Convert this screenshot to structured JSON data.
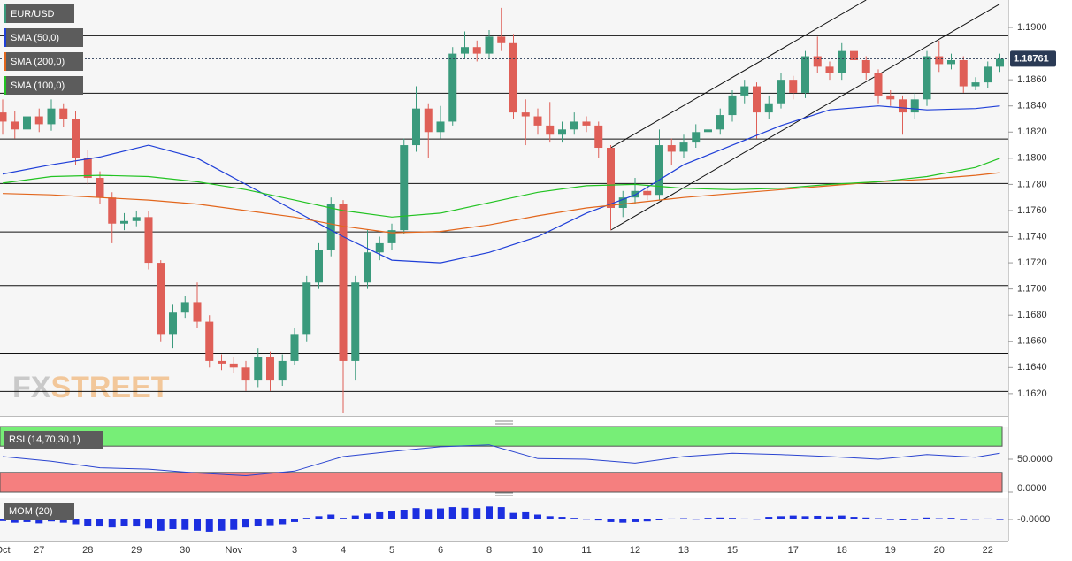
{
  "watermark": [
    "FX",
    "STREET"
  ],
  "chart_data": [
    {
      "type": "candlestick",
      "title": "EUR/USD",
      "up_color": "#3a9a7c",
      "down_color": "#df5f57",
      "categories": [
        "Oct",
        null,
        null,
        "27",
        null,
        null,
        null,
        "28",
        null,
        null,
        null,
        "29",
        null,
        null,
        null,
        "30",
        null,
        null,
        null,
        "Nov",
        null,
        null,
        null,
        null,
        "3",
        null,
        null,
        null,
        "4",
        null,
        null,
        null,
        "5",
        null,
        null,
        null,
        "6",
        null,
        null,
        null,
        "8",
        null,
        null,
        null,
        "10",
        null,
        null,
        null,
        "11",
        null,
        null,
        null,
        "12",
        null,
        null,
        null,
        "13",
        null,
        null,
        null,
        "15",
        null,
        null,
        null,
        null,
        "17",
        null,
        null,
        null,
        "18",
        null,
        null,
        null,
        "19",
        null,
        null,
        null,
        "20",
        null,
        null,
        null,
        "22",
        null
      ],
      "open": [
        1.1835,
        1.1828,
        1.1822,
        1.1832,
        1.1826,
        1.1838,
        1.183,
        1.18,
        1.1785,
        1.177,
        1.175,
        1.1752,
        1.1755,
        1.172,
        1.1665,
        1.1682,
        1.169,
        1.1675,
        1.1645,
        1.1643,
        1.164,
        1.163,
        1.1648,
        1.163,
        1.1645,
        1.1665,
        1.1705,
        1.173,
        1.1765,
        1.1645,
        1.1705,
        1.1728,
        1.1735,
        1.1745,
        1.181,
        1.1838,
        1.182,
        1.1828,
        1.188,
        1.1885,
        1.188,
        1.1893,
        1.1888,
        1.1835,
        1.1832,
        1.1825,
        1.1818,
        1.1822,
        1.1828,
        1.1825,
        1.1808,
        1.1762,
        1.177,
        1.1775,
        1.1772,
        1.181,
        1.1805,
        1.1812,
        1.182,
        1.1822,
        1.1833,
        1.1848,
        1.1855,
        1.1835,
        1.1842,
        1.186,
        1.185,
        1.1878,
        1.187,
        1.1865,
        1.1882,
        1.1875,
        1.1865,
        1.1848,
        1.1845,
        1.1835,
        1.1845,
        1.1878,
        1.1872,
        1.1875,
        1.1855,
        1.1858,
        1.187
      ],
      "high": [
        1.1845,
        1.1836,
        1.184,
        1.1838,
        1.1845,
        1.1842,
        1.1836,
        1.1806,
        1.179,
        1.1774,
        1.1758,
        1.176,
        1.176,
        1.1722,
        1.1688,
        1.1695,
        1.1705,
        1.168,
        1.165,
        1.1648,
        1.1645,
        1.1655,
        1.1652,
        1.165,
        1.167,
        1.171,
        1.1735,
        1.177,
        1.1768,
        1.171,
        1.1745,
        1.174,
        1.175,
        1.1815,
        1.1855,
        1.1842,
        1.184,
        1.1885,
        1.1897,
        1.189,
        1.1898,
        1.1915,
        1.1895,
        1.1845,
        1.1838,
        1.1843,
        1.1828,
        1.1835,
        1.1832,
        1.1828,
        1.181,
        1.1775,
        1.1785,
        1.178,
        1.1822,
        1.1815,
        1.1818,
        1.1826,
        1.1828,
        1.1838,
        1.1852,
        1.186,
        1.1858,
        1.1848,
        1.1865,
        1.1863,
        1.1882,
        1.1893,
        1.1874,
        1.1888,
        1.189,
        1.1878,
        1.1868,
        1.1852,
        1.1848,
        1.185,
        1.1882,
        1.189,
        1.188,
        1.1878,
        1.1862,
        1.1874,
        1.188
      ],
      "low": [
        1.1818,
        1.1815,
        1.1816,
        1.182,
        1.1821,
        1.1824,
        1.1795,
        1.178,
        1.1765,
        1.1735,
        1.1745,
        1.1748,
        1.1715,
        1.166,
        1.1655,
        1.1678,
        1.167,
        1.164,
        1.1638,
        1.1636,
        1.1622,
        1.1625,
        1.1622,
        1.1626,
        1.1642,
        1.166,
        1.17,
        1.1725,
        1.1605,
        1.163,
        1.17,
        1.1722,
        1.173,
        1.1742,
        1.1805,
        1.18,
        1.1815,
        1.1825,
        1.1876,
        1.1874,
        1.1876,
        1.1882,
        1.183,
        1.181,
        1.1818,
        1.1812,
        1.1812,
        1.1818,
        1.182,
        1.18,
        1.1745,
        1.1755,
        1.1765,
        1.1768,
        1.1768,
        1.1795,
        1.18,
        1.1808,
        1.1815,
        1.1818,
        1.1828,
        1.1842,
        1.1815,
        1.183,
        1.1838,
        1.1845,
        1.1846,
        1.1865,
        1.186,
        1.186,
        1.187,
        1.186,
        1.1842,
        1.184,
        1.1818,
        1.183,
        1.184,
        1.1866,
        1.1868,
        1.185,
        1.1852,
        1.1854,
        1.1866
      ],
      "close": [
        1.1828,
        1.1822,
        1.1832,
        1.1826,
        1.1838,
        1.183,
        1.18,
        1.1785,
        1.177,
        1.175,
        1.1752,
        1.1755,
        1.172,
        1.1665,
        1.1682,
        1.169,
        1.1675,
        1.1645,
        1.1643,
        1.164,
        1.163,
        1.1648,
        1.163,
        1.1645,
        1.1665,
        1.1705,
        1.173,
        1.1765,
        1.1645,
        1.1705,
        1.1728,
        1.1735,
        1.1745,
        1.181,
        1.1838,
        1.182,
        1.1828,
        1.188,
        1.1885,
        1.188,
        1.1893,
        1.1888,
        1.1835,
        1.1832,
        1.1825,
        1.1818,
        1.1822,
        1.1828,
        1.1825,
        1.1808,
        1.1762,
        1.177,
        1.1775,
        1.1772,
        1.181,
        1.1805,
        1.1812,
        1.182,
        1.1822,
        1.1833,
        1.1848,
        1.1855,
        1.1835,
        1.1842,
        1.186,
        1.185,
        1.1878,
        1.187,
        1.1865,
        1.1882,
        1.1875,
        1.1865,
        1.1848,
        1.1845,
        1.1835,
        1.1845,
        1.1878,
        1.1872,
        1.1875,
        1.1855,
        1.1858,
        1.187,
        1.1876
      ],
      "series": [
        {
          "name": "SMA (50,0)",
          "color": "#1f3fd8",
          "x": [
            0,
            4,
            8,
            12,
            16,
            20,
            24,
            28,
            32,
            36,
            40,
            44,
            48,
            52,
            56,
            60,
            64,
            68,
            72,
            76,
            80,
            82
          ],
          "values": [
            1.1788,
            1.1795,
            1.1801,
            1.181,
            1.18,
            1.178,
            1.176,
            1.174,
            1.1722,
            1.172,
            1.1728,
            1.174,
            1.1758,
            1.1772,
            1.1795,
            1.181,
            1.1825,
            1.1837,
            1.184,
            1.1837,
            1.1838,
            1.184
          ]
        },
        {
          "name": "SMA (200,0)",
          "color": "#e2661c",
          "x": [
            0,
            4,
            8,
            12,
            16,
            20,
            24,
            28,
            32,
            36,
            40,
            44,
            48,
            52,
            56,
            60,
            64,
            68,
            72,
            76,
            80,
            82
          ],
          "values": [
            1.1773,
            1.1772,
            1.177,
            1.1768,
            1.1765,
            1.176,
            1.1755,
            1.1748,
            1.1743,
            1.1744,
            1.1749,
            1.1756,
            1.1762,
            1.1766,
            1.177,
            1.1773,
            1.1776,
            1.1779,
            1.1782,
            1.1784,
            1.1787,
            1.1789
          ]
        },
        {
          "name": "SMA (100,0)",
          "color": "#22c322",
          "x": [
            0,
            4,
            8,
            12,
            16,
            20,
            24,
            28,
            32,
            36,
            40,
            44,
            48,
            52,
            56,
            60,
            64,
            68,
            72,
            76,
            80,
            82
          ],
          "values": [
            1.1781,
            1.1786,
            1.1787,
            1.1786,
            1.1782,
            1.1776,
            1.1768,
            1.176,
            1.1755,
            1.1758,
            1.1766,
            1.1774,
            1.1779,
            1.178,
            1.1777,
            1.1776,
            1.1777,
            1.178,
            1.1782,
            1.1786,
            1.1793,
            1.18
          ]
        }
      ],
      "levels": [
        1.1894,
        1.185,
        1.1815,
        1.1781,
        1.1744,
        1.1703,
        1.1651,
        1.1622
      ],
      "channel": [
        {
          "x": [
            50,
            71
          ],
          "values": [
            1.1808,
            1.1921
          ]
        },
        {
          "x": [
            50,
            82
          ],
          "values": [
            1.1745,
            1.1918
          ]
        }
      ],
      "last_price": 1.18761,
      "ylim": [
        1.1603,
        1.1921
      ],
      "yticks": [
        {
          "value": 1.162,
          "label": "1.1620"
        },
        {
          "value": 1.164,
          "label": "1.1640"
        },
        {
          "value": 1.166,
          "label": "1.1660"
        },
        {
          "value": 1.168,
          "label": "1.1680"
        },
        {
          "value": 1.17,
          "label": "1.1700"
        },
        {
          "value": 1.172,
          "label": "1.1720"
        },
        {
          "value": 1.174,
          "label": "1.1740"
        },
        {
          "value": 1.176,
          "label": "1.1760"
        },
        {
          "value": 1.178,
          "label": "1.1780"
        },
        {
          "value": 1.18,
          "label": "1.1800"
        },
        {
          "value": 1.182,
          "label": "1.1820"
        },
        {
          "value": 1.184,
          "label": "1.1840"
        },
        {
          "value": 1.186,
          "label": "1.1860"
        },
        {
          "value": 1.19,
          "label": "1.1900"
        }
      ]
    },
    {
      "type": "line",
      "title": "RSI (14,70,30,1)",
      "color": "#2a44d0",
      "overbought": 70,
      "oversold": 30,
      "overbought_color": "#77ee77",
      "oversold_color": "#f57f7f",
      "x": [
        0,
        4,
        8,
        12,
        16,
        20,
        24,
        28,
        32,
        36,
        40,
        44,
        48,
        52,
        56,
        60,
        64,
        68,
        72,
        76,
        80,
        82
      ],
      "values": [
        54,
        47,
        37,
        35,
        29,
        25,
        32,
        54,
        62,
        69,
        72,
        51,
        50,
        44,
        54,
        59,
        57,
        54,
        50,
        57,
        53,
        59
      ],
      "ylim": [
        0,
        100
      ],
      "yticks": [
        {
          "value": 50,
          "label": "50.0000"
        },
        {
          "value": 0,
          "label": "0.0000"
        }
      ]
    },
    {
      "type": "bar",
      "title": "MOM (20)",
      "color": "#1c2fe0",
      "values": [
        -0.0005,
        -0.001,
        -0.0008,
        -0.0012,
        -0.0006,
        -0.001,
        -0.0015,
        -0.002,
        -0.0022,
        -0.0025,
        -0.002,
        -0.0022,
        -0.0028,
        -0.0035,
        -0.003,
        -0.0032,
        -0.0035,
        -0.0038,
        -0.0035,
        -0.0032,
        -0.0025,
        -0.002,
        -0.0018,
        -0.0015,
        -0.0008,
        0.0005,
        0.001,
        0.0015,
        0.0005,
        0.0012,
        0.0018,
        0.0022,
        0.0025,
        0.003,
        0.0035,
        0.0032,
        0.0034,
        0.0038,
        0.0036,
        0.0035,
        0.004,
        0.0038,
        0.002,
        0.0022,
        0.0015,
        0.001,
        0.0008,
        0.0005,
        0.0002,
        -0.0003,
        -0.0008,
        -0.001,
        -0.0008,
        -0.0006,
        -0.0002,
        0.0003,
        0.0004,
        0.0002,
        0.0005,
        0.0006,
        0.0005,
        0.0003,
        0.0002,
        0.0008,
        0.001,
        0.0012,
        0.001,
        0.0011,
        0.0009,
        0.0012,
        0.0008,
        0.0006,
        0.0004,
        0.0001,
        -0.0002,
        0.0001,
        0.0006,
        0.0004,
        0.0005,
        0.0001,
        0.0002,
        0.0003,
        0.0001
      ],
      "ylim": [
        -0.006,
        0.006
      ],
      "yticks": [
        {
          "value": 0,
          "label": "-0.0000"
        }
      ]
    }
  ]
}
